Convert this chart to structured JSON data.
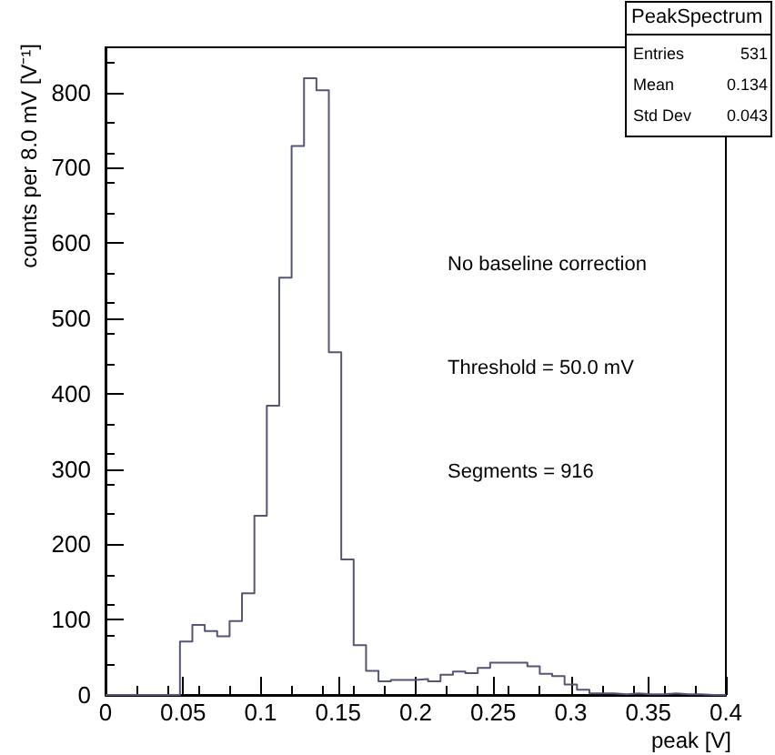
{
  "chart_data": {
    "type": "histogram",
    "xlabel": "peak [V]",
    "ylabel": "counts per 8.0 mV [V⁻¹]",
    "bins": [
      0,
      0.008,
      0.016,
      0.024,
      0.032,
      0.04,
      0.048,
      0.056,
      0.064,
      0.072,
      0.08,
      0.088,
      0.096,
      0.104,
      0.112,
      0.12,
      0.128,
      0.136,
      0.144,
      0.152,
      0.16,
      0.168,
      0.176,
      0.184,
      0.192,
      0.2,
      0.208,
      0.216,
      0.224,
      0.232,
      0.24,
      0.248,
      0.256,
      0.264,
      0.272,
      0.28,
      0.288,
      0.296,
      0.304,
      0.312,
      0.32,
      0.328,
      0.336,
      0.344,
      0.352,
      0.36,
      0.368,
      0.376,
      0.384,
      0.392,
      0.4
    ],
    "values": [
      0,
      0,
      0,
      0,
      0,
      0,
      71,
      93,
      85,
      78,
      98,
      135,
      238,
      384,
      554,
      729,
      819,
      803,
      455,
      180,
      66,
      32,
      18,
      20,
      20,
      21,
      18,
      27,
      31,
      29,
      36,
      43,
      43,
      43,
      38,
      28,
      25,
      14,
      7,
      2,
      2,
      1,
      2,
      1,
      1,
      2,
      1,
      1,
      0,
      0
    ],
    "color": "#555577",
    "xlim": [
      0,
      0.4
    ],
    "ylim": [
      0,
      860
    ],
    "xticks": [
      0,
      0.05,
      0.1,
      0.15,
      0.2,
      0.25,
      0.3,
      0.35,
      0.4
    ],
    "yticks": [
      0,
      100,
      200,
      300,
      400,
      500,
      600,
      700,
      800
    ],
    "grid": false,
    "annotations": [
      "No baseline correction",
      "Threshold = 50.0 mV",
      "Segments = 916",
      "PeakSpectrum",
      "Entries",
      "531",
      "Mean",
      "0.134",
      "Std Dev",
      "0.043"
    ]
  }
}
